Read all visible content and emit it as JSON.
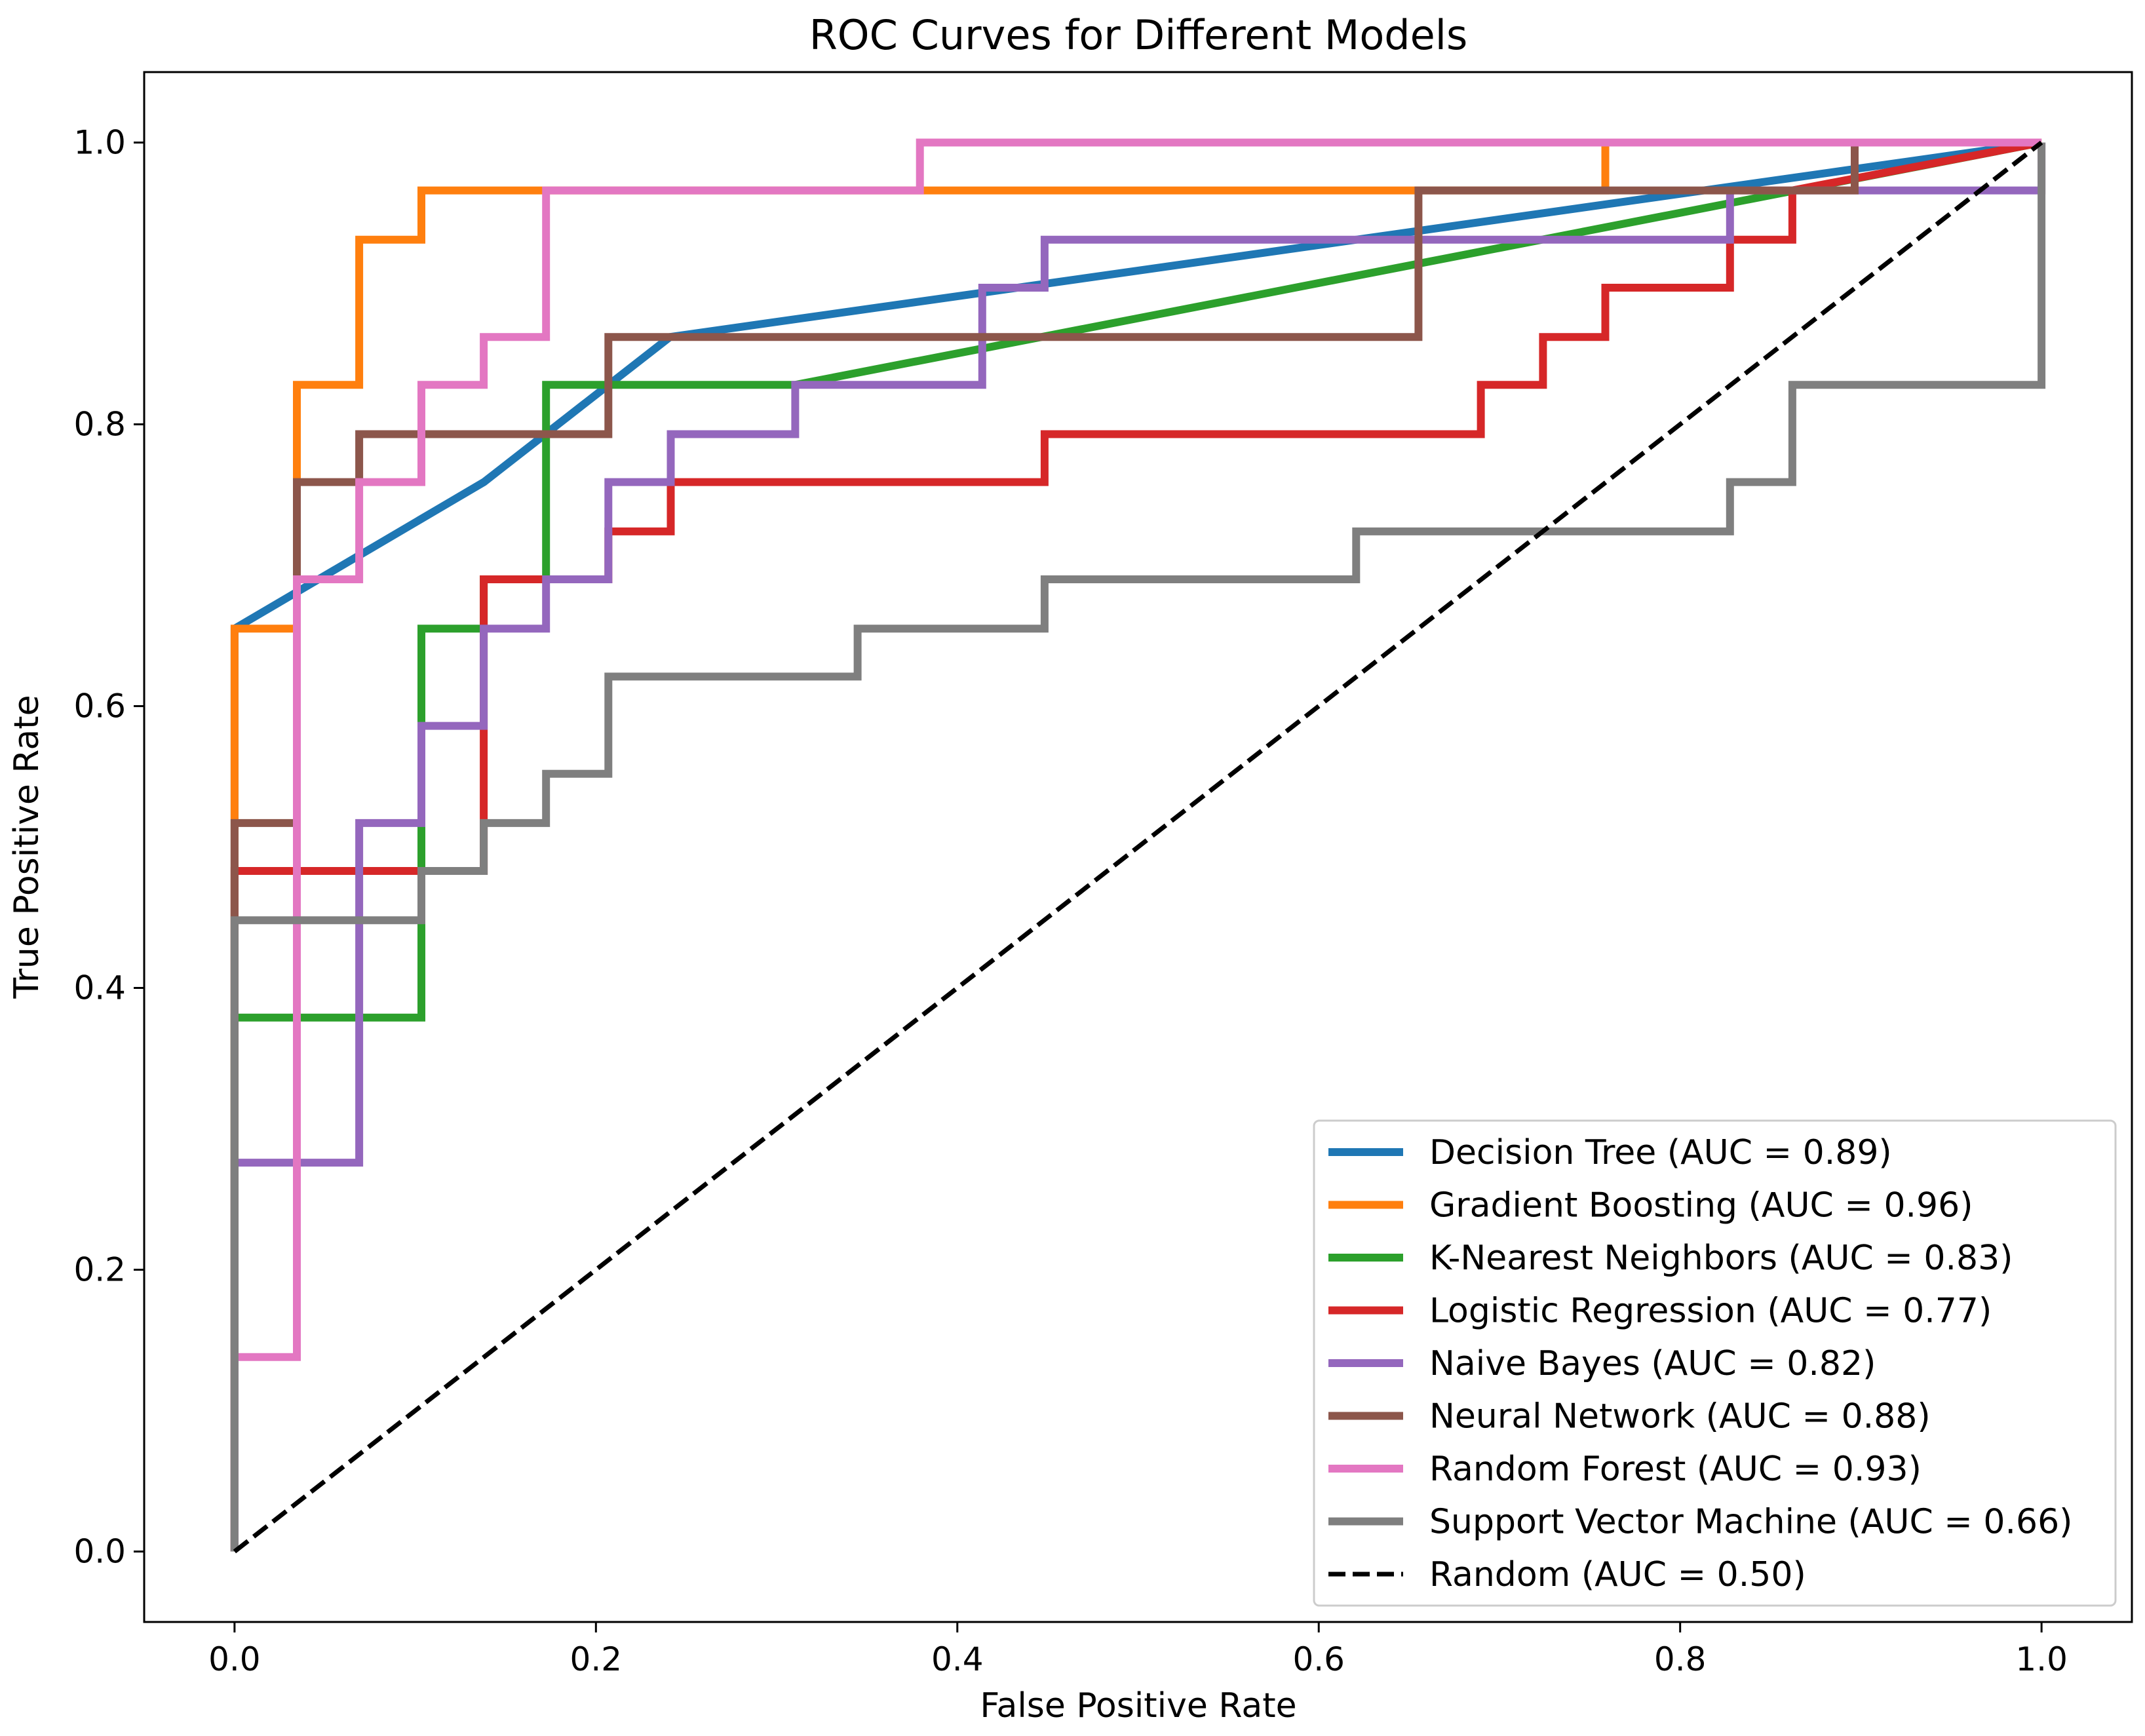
{
  "chart_data": {
    "type": "line",
    "title": "ROC Curves for Different Models",
    "xlabel": "False Positive Rate",
    "ylabel": "True Positive Rate",
    "xlim": [
      -0.05,
      1.05
    ],
    "ylim": [
      -0.05,
      1.05
    ],
    "xticks": [
      0.0,
      0.2,
      0.4,
      0.6,
      0.8,
      1.0
    ],
    "yticks": [
      0.0,
      0.2,
      0.4,
      0.6,
      0.8,
      1.0
    ],
    "x_tick_labels": [
      "0.0",
      "0.2",
      "0.4",
      "0.6",
      "0.8",
      "1.0"
    ],
    "y_tick_labels": [
      "0.0",
      "0.2",
      "0.4",
      "0.6",
      "0.8",
      "1.0"
    ],
    "grid": false,
    "legend_position": "lower-right",
    "series": [
      {
        "name": "Decision Tree (AUC = 0.89)",
        "color": "#1f77b4",
        "dash": "solid",
        "x": [
          0.0,
          0.0,
          0.138,
          0.241,
          1.0
        ],
        "y": [
          0.0,
          0.655,
          0.759,
          0.862,
          1.0
        ]
      },
      {
        "name": "Gradient Boosting (AUC = 0.96)",
        "color": "#ff7f0e",
        "dash": "solid",
        "x": [
          0.0,
          0.0,
          0.0,
          0.0345,
          0.0345,
          0.069,
          0.069,
          0.1034,
          0.1034,
          0.7586,
          0.7586,
          1.0
        ],
        "y": [
          0.0,
          0.517,
          0.655,
          0.655,
          0.828,
          0.828,
          0.931,
          0.931,
          0.966,
          0.966,
          1.0,
          1.0
        ]
      },
      {
        "name": "K-Nearest Neighbors (AUC = 0.83)",
        "color": "#2ca02c",
        "dash": "solid",
        "x": [
          0.0,
          0.0,
          0.1034,
          0.1034,
          0.1379,
          0.1379,
          0.1724,
          0.1724,
          0.3103,
          1.0
        ],
        "y": [
          0.0,
          0.379,
          0.379,
          0.655,
          0.655,
          0.69,
          0.69,
          0.828,
          0.828,
          1.0
        ]
      },
      {
        "name": "Logistic Regression (AUC = 0.77)",
        "color": "#d62728",
        "dash": "solid",
        "x": [
          0.0,
          0.0,
          0.1379,
          0.1379,
          0.1724,
          0.1724,
          0.2069,
          0.2069,
          0.2414,
          0.2414,
          0.4483,
          0.4483,
          0.6897,
          0.6897,
          0.7241,
          0.7241,
          0.7586,
          0.7586,
          0.8276,
          0.8276,
          0.8621,
          0.8621,
          1.0
        ],
        "y": [
          0.0,
          0.483,
          0.483,
          0.69,
          0.69,
          0.69,
          0.69,
          0.724,
          0.724,
          0.759,
          0.759,
          0.793,
          0.793,
          0.828,
          0.828,
          0.862,
          0.862,
          0.897,
          0.897,
          0.931,
          0.931,
          0.966,
          1.0
        ]
      },
      {
        "name": "Naive Bayes (AUC = 0.82)",
        "color": "#9467bd",
        "dash": "solid",
        "x": [
          0.0,
          0.0,
          0.069,
          0.069,
          0.1034,
          0.1034,
          0.1379,
          0.1379,
          0.1724,
          0.1724,
          0.2069,
          0.2069,
          0.2414,
          0.2414,
          0.3103,
          0.3103,
          0.4138,
          0.4138,
          0.4483,
          0.4483,
          0.8276,
          0.8276,
          1.0,
          1.0
        ],
        "y": [
          0.0,
          0.276,
          0.276,
          0.517,
          0.517,
          0.586,
          0.586,
          0.655,
          0.655,
          0.69,
          0.69,
          0.759,
          0.759,
          0.793,
          0.793,
          0.828,
          0.828,
          0.897,
          0.897,
          0.931,
          0.931,
          0.966,
          0.966,
          1.0
        ]
      },
      {
        "name": "Neural Network (AUC = 0.88)",
        "color": "#8c564b",
        "dash": "solid",
        "x": [
          0.0,
          0.0,
          0.0345,
          0.0345,
          0.069,
          0.069,
          0.2069,
          0.2069,
          0.6552,
          0.6552,
          0.8966,
          0.8966,
          1.0
        ],
        "y": [
          0.0,
          0.517,
          0.517,
          0.759,
          0.759,
          0.793,
          0.793,
          0.862,
          0.862,
          0.966,
          0.966,
          1.0,
          1.0
        ]
      },
      {
        "name": "Random Forest (AUC = 0.93)",
        "color": "#e377c2",
        "dash": "solid",
        "x": [
          0.0,
          0.0,
          0.0345,
          0.0345,
          0.069,
          0.069,
          0.1034,
          0.1034,
          0.1379,
          0.1379,
          0.1724,
          0.1724,
          0.3793,
          0.3793,
          1.0
        ],
        "y": [
          0.0,
          0.138,
          0.138,
          0.69,
          0.69,
          0.759,
          0.759,
          0.828,
          0.828,
          0.862,
          0.862,
          0.966,
          0.966,
          1.0,
          1.0
        ]
      },
      {
        "name": "Support Vector Machine (AUC = 0.66)",
        "color": "#7f7f7f",
        "dash": "solid",
        "x": [
          0.0,
          0.0,
          0.1034,
          0.1034,
          0.1379,
          0.1379,
          0.1724,
          0.1724,
          0.2069,
          0.2069,
          0.3448,
          0.3448,
          0.4483,
          0.4483,
          0.6207,
          0.6207,
          0.8276,
          0.8276,
          0.8621,
          0.8621,
          1.0,
          1.0
        ],
        "y": [
          0.0,
          0.448,
          0.448,
          0.483,
          0.483,
          0.517,
          0.517,
          0.552,
          0.552,
          0.621,
          0.621,
          0.655,
          0.655,
          0.69,
          0.69,
          0.724,
          0.724,
          0.759,
          0.759,
          0.828,
          0.828,
          1.0
        ]
      },
      {
        "name": "Random (AUC = 0.50)",
        "color": "#000000",
        "dash": "dashed",
        "x": [
          0.0,
          1.0
        ],
        "y": [
          0.0,
          1.0
        ]
      }
    ]
  }
}
